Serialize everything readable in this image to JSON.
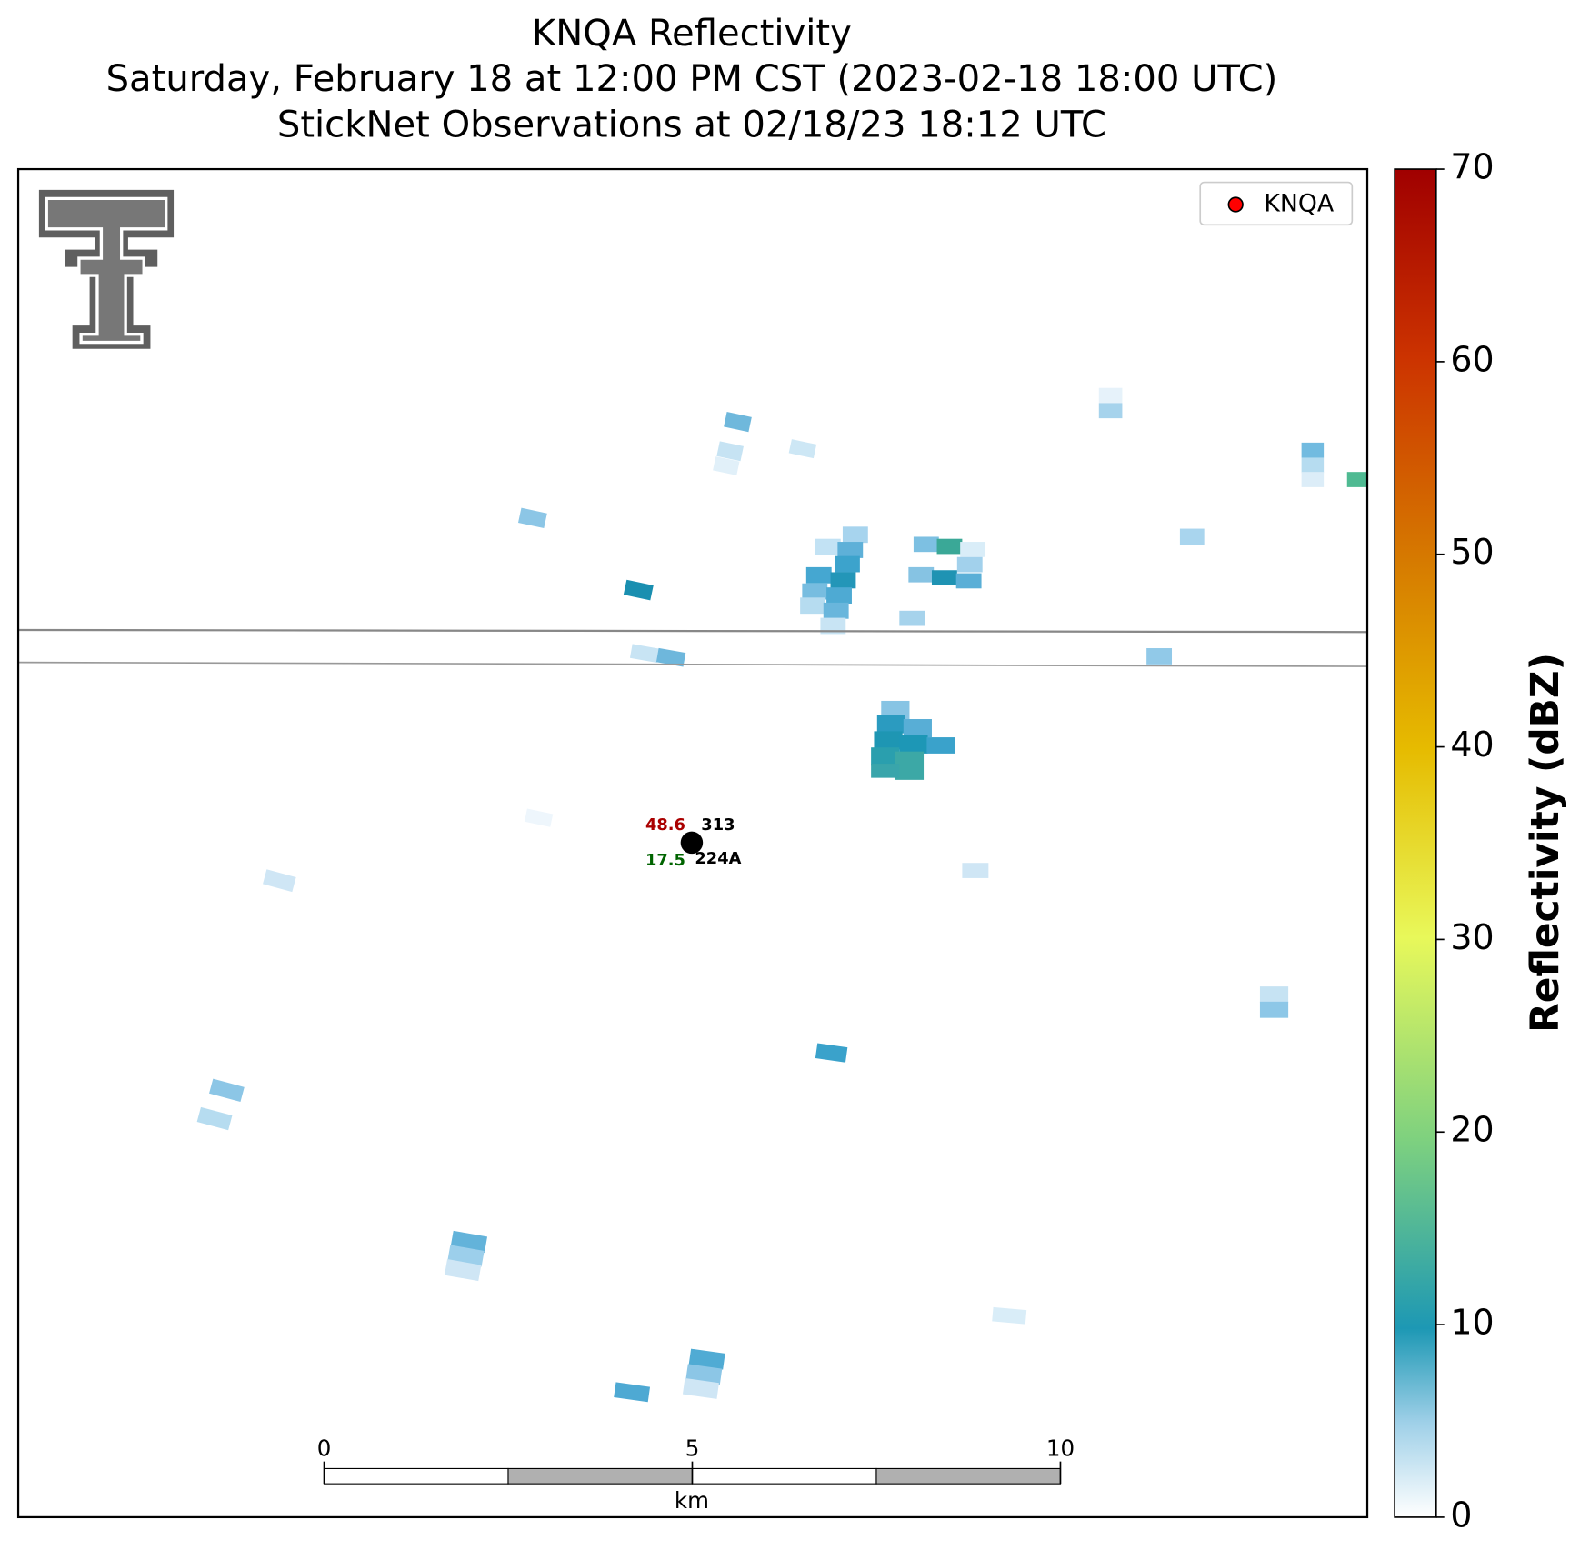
{
  "title": [
    "KNQA Reflectivity",
    "Saturday, February 18 at 12:00 PM CST (2023-02-18 18:00 UTC)",
    "StickNet Observations at 02/18/23 18:12 UTC"
  ],
  "legend": {
    "label": "KNQA",
    "color": "#ff0000"
  },
  "colorbar": {
    "label": "Reflectivity (dBZ)",
    "lim": [
      0,
      70
    ],
    "ticks": [
      0,
      10,
      20,
      30,
      40,
      50,
      60,
      70
    ]
  },
  "scale_bar": {
    "lim": [
      0,
      10
    ],
    "ticks": [
      0,
      5,
      10
    ],
    "unit": "km"
  },
  "station": {
    "id": "224A",
    "temperature": "48.6",
    "dewpoint": "17.5",
    "wind": "313"
  }
}
